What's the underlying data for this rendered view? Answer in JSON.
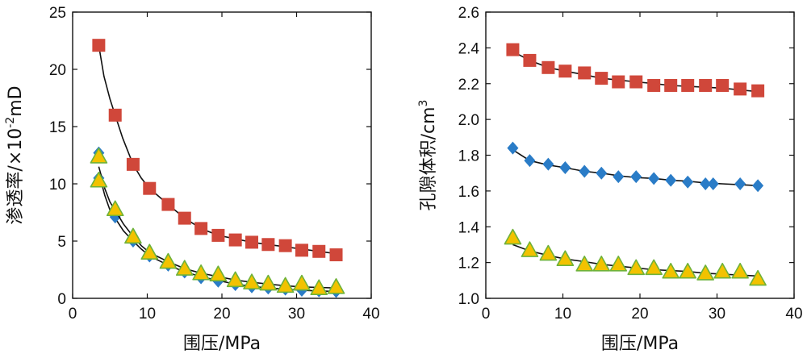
{
  "chart_data": [
    {
      "type": "scatter",
      "xlabel": "围压/MPa",
      "ylabel_main": "渗透率/×10",
      "ylabel_sup": "-2",
      "ylabel_unit": "mD",
      "xlim": [
        0,
        40
      ],
      "ylim": [
        0,
        25
      ],
      "xticks": [
        0,
        10,
        20,
        30,
        40
      ],
      "yticks": [
        0,
        5,
        10,
        15,
        20,
        25
      ],
      "grid": false,
      "series": [
        {
          "marker": "square",
          "color": "#d0473a",
          "points": [
            [
              3.5,
              22.1
            ],
            [
              5.7,
              16.0
            ],
            [
              8.1,
              11.7
            ],
            [
              10.3,
              9.6
            ],
            [
              12.8,
              8.2
            ],
            [
              15.0,
              7.0
            ],
            [
              17.2,
              6.1
            ],
            [
              19.5,
              5.5
            ],
            [
              21.8,
              5.1
            ],
            [
              24.0,
              4.9
            ],
            [
              26.2,
              4.7
            ],
            [
              28.5,
              4.6
            ],
            [
              30.7,
              4.2
            ],
            [
              33.0,
              4.1
            ],
            [
              35.3,
              3.8
            ]
          ],
          "fit": [
            [
              3.5,
              22.1
            ],
            [
              4.2,
              19.4
            ],
            [
              5.0,
              17.4
            ],
            [
              5.7,
              16.0
            ],
            [
              6.7,
              14.0
            ],
            [
              8.1,
              11.7
            ],
            [
              9.2,
              10.5
            ],
            [
              10.3,
              9.6
            ],
            [
              12.8,
              8.2
            ],
            [
              15.0,
              7.0
            ],
            [
              17.2,
              6.1
            ],
            [
              19.5,
              5.5
            ],
            [
              21.8,
              5.2
            ],
            [
              24.0,
              4.9
            ],
            [
              26.2,
              4.7
            ],
            [
              28.5,
              4.5
            ],
            [
              30.7,
              4.3
            ],
            [
              33.0,
              4.1
            ],
            [
              35.3,
              3.9
            ]
          ]
        },
        {
          "marker": "diamond",
          "color": "#2a7cc7",
          "points": [
            [
              3.5,
              12.7
            ],
            [
              3.5,
              10.5
            ],
            [
              5.7,
              7.1
            ],
            [
              8.1,
              5.0
            ],
            [
              10.3,
              3.7
            ],
            [
              12.8,
              2.9
            ],
            [
              15.0,
              2.3
            ],
            [
              17.2,
              1.8
            ],
            [
              19.5,
              1.5
            ],
            [
              21.8,
              1.2
            ],
            [
              24.0,
              1.0
            ],
            [
              26.2,
              0.9
            ],
            [
              28.5,
              0.8
            ],
            [
              30.7,
              0.7
            ],
            [
              33.0,
              0.65
            ],
            [
              35.3,
              0.6
            ]
          ],
          "fit": [
            [
              3.5,
              11.0
            ],
            [
              4.3,
              9.0
            ],
            [
              5.0,
              7.7
            ],
            [
              5.7,
              7.0
            ],
            [
              6.8,
              5.9
            ],
            [
              8.1,
              5.0
            ],
            [
              9.2,
              4.3
            ],
            [
              10.3,
              3.7
            ],
            [
              12.8,
              2.9
            ],
            [
              15.0,
              2.3
            ],
            [
              17.2,
              1.9
            ],
            [
              19.5,
              1.55
            ],
            [
              21.8,
              1.25
            ],
            [
              24.0,
              1.05
            ],
            [
              26.2,
              0.9
            ],
            [
              28.5,
              0.8
            ],
            [
              30.7,
              0.7
            ],
            [
              33.0,
              0.65
            ],
            [
              35.3,
              0.6
            ]
          ]
        },
        {
          "marker": "triangle",
          "color": "#f2c200",
          "stroke": "#6eb23a",
          "points": [
            [
              3.5,
              12.4
            ],
            [
              3.5,
              10.3
            ],
            [
              5.7,
              7.8
            ],
            [
              8.1,
              5.4
            ],
            [
              10.3,
              4.0
            ],
            [
              12.8,
              3.2
            ],
            [
              15.0,
              2.6
            ],
            [
              17.2,
              2.2
            ],
            [
              19.5,
              2.1
            ],
            [
              21.8,
              1.6
            ],
            [
              24.0,
              1.4
            ],
            [
              26.2,
              1.3
            ],
            [
              28.5,
              1.1
            ],
            [
              30.7,
              1.3
            ],
            [
              33.0,
              0.9
            ],
            [
              35.3,
              1.0
            ]
          ],
          "fit": [
            [
              3.5,
              11.5
            ],
            [
              4.3,
              9.6
            ],
            [
              5.0,
              8.4
            ],
            [
              5.7,
              7.7
            ],
            [
              6.8,
              6.5
            ],
            [
              8.1,
              5.4
            ],
            [
              9.2,
              4.6
            ],
            [
              10.3,
              4.0
            ],
            [
              12.8,
              3.2
            ],
            [
              15.0,
              2.6
            ],
            [
              17.2,
              2.2
            ],
            [
              19.5,
              1.9
            ],
            [
              21.8,
              1.6
            ],
            [
              24.0,
              1.4
            ],
            [
              26.2,
              1.25
            ],
            [
              28.5,
              1.1
            ],
            [
              30.7,
              1.0
            ],
            [
              33.0,
              0.95
            ],
            [
              35.3,
              0.9
            ]
          ]
        }
      ]
    },
    {
      "type": "scatter",
      "xlabel": "围压/MPa",
      "ylabel_main": "孔隙体积/cm",
      "ylabel_sup": "3",
      "ylabel_unit": "",
      "xlim": [
        0,
        40
      ],
      "ylim": [
        1.0,
        2.6
      ],
      "xticks": [
        0,
        10,
        20,
        30,
        40
      ],
      "yticks": [
        1.0,
        1.2,
        1.4,
        1.6,
        1.8,
        2.0,
        2.2,
        2.4,
        2.6
      ],
      "grid": false,
      "series": [
        {
          "marker": "square",
          "color": "#d0473a",
          "points": [
            [
              3.5,
              2.39
            ],
            [
              5.7,
              2.33
            ],
            [
              8.1,
              2.29
            ],
            [
              10.3,
              2.27
            ],
            [
              12.8,
              2.26
            ],
            [
              15.0,
              2.23
            ],
            [
              17.2,
              2.21
            ],
            [
              19.5,
              2.21
            ],
            [
              21.8,
              2.19
            ],
            [
              24.0,
              2.19
            ],
            [
              26.2,
              2.19
            ],
            [
              28.5,
              2.19
            ],
            [
              30.7,
              2.19
            ],
            [
              33.0,
              2.17
            ],
            [
              35.3,
              2.16
            ]
          ],
          "fit": [
            [
              3.5,
              2.38
            ],
            [
              5.7,
              2.33
            ],
            [
              8.1,
              2.29
            ],
            [
              10.3,
              2.27
            ],
            [
              12.8,
              2.25
            ],
            [
              15.0,
              2.23
            ],
            [
              17.2,
              2.22
            ],
            [
              19.5,
              2.21
            ],
            [
              21.8,
              2.2
            ],
            [
              24.0,
              2.19
            ],
            [
              26.2,
              2.185
            ],
            [
              28.5,
              2.18
            ],
            [
              30.7,
              2.175
            ],
            [
              33.0,
              2.165
            ],
            [
              35.3,
              2.155
            ]
          ]
        },
        {
          "marker": "diamond",
          "color": "#2a7cc7",
          "points": [
            [
              3.5,
              1.84
            ],
            [
              5.7,
              1.77
            ],
            [
              8.1,
              1.75
            ],
            [
              10.3,
              1.73
            ],
            [
              12.8,
              1.71
            ],
            [
              15.0,
              1.7
            ],
            [
              17.2,
              1.68
            ],
            [
              19.5,
              1.68
            ],
            [
              21.8,
              1.67
            ],
            [
              24.0,
              1.66
            ],
            [
              26.2,
              1.65
            ],
            [
              28.5,
              1.64
            ],
            [
              29.5,
              1.64
            ],
            [
              33.0,
              1.64
            ],
            [
              35.3,
              1.63
            ]
          ],
          "fit": [
            [
              3.5,
              1.83
            ],
            [
              5.7,
              1.77
            ],
            [
              8.1,
              1.745
            ],
            [
              10.3,
              1.73
            ],
            [
              12.8,
              1.71
            ],
            [
              15.0,
              1.7
            ],
            [
              17.2,
              1.685
            ],
            [
              19.5,
              1.675
            ],
            [
              21.8,
              1.67
            ],
            [
              24.0,
              1.66
            ],
            [
              26.2,
              1.655
            ],
            [
              28.5,
              1.645
            ],
            [
              30.7,
              1.64
            ],
            [
              33.0,
              1.635
            ],
            [
              35.3,
              1.63
            ]
          ]
        },
        {
          "marker": "triangle",
          "color": "#f2c200",
          "stroke": "#6eb23a",
          "points": [
            [
              3.5,
              1.34
            ],
            [
              5.7,
              1.27
            ],
            [
              8.1,
              1.25
            ],
            [
              10.3,
              1.22
            ],
            [
              12.8,
              1.19
            ],
            [
              15.0,
              1.19
            ],
            [
              17.2,
              1.19
            ],
            [
              19.5,
              1.17
            ],
            [
              21.8,
              1.17
            ],
            [
              24.0,
              1.15
            ],
            [
              26.2,
              1.15
            ],
            [
              28.5,
              1.14
            ],
            [
              30.7,
              1.15
            ],
            [
              33.0,
              1.15
            ],
            [
              35.3,
              1.11
            ]
          ],
          "fit": [
            [
              3.5,
              1.3
            ],
            [
              5.7,
              1.265
            ],
            [
              8.1,
              1.24
            ],
            [
              10.3,
              1.22
            ],
            [
              12.8,
              1.205
            ],
            [
              15.0,
              1.19
            ],
            [
              17.2,
              1.18
            ],
            [
              19.5,
              1.17
            ],
            [
              21.8,
              1.16
            ],
            [
              24.0,
              1.155
            ],
            [
              26.2,
              1.15
            ],
            [
              28.5,
              1.14
            ],
            [
              30.7,
              1.135
            ],
            [
              33.0,
              1.13
            ],
            [
              35.3,
              1.125
            ]
          ]
        }
      ]
    }
  ]
}
